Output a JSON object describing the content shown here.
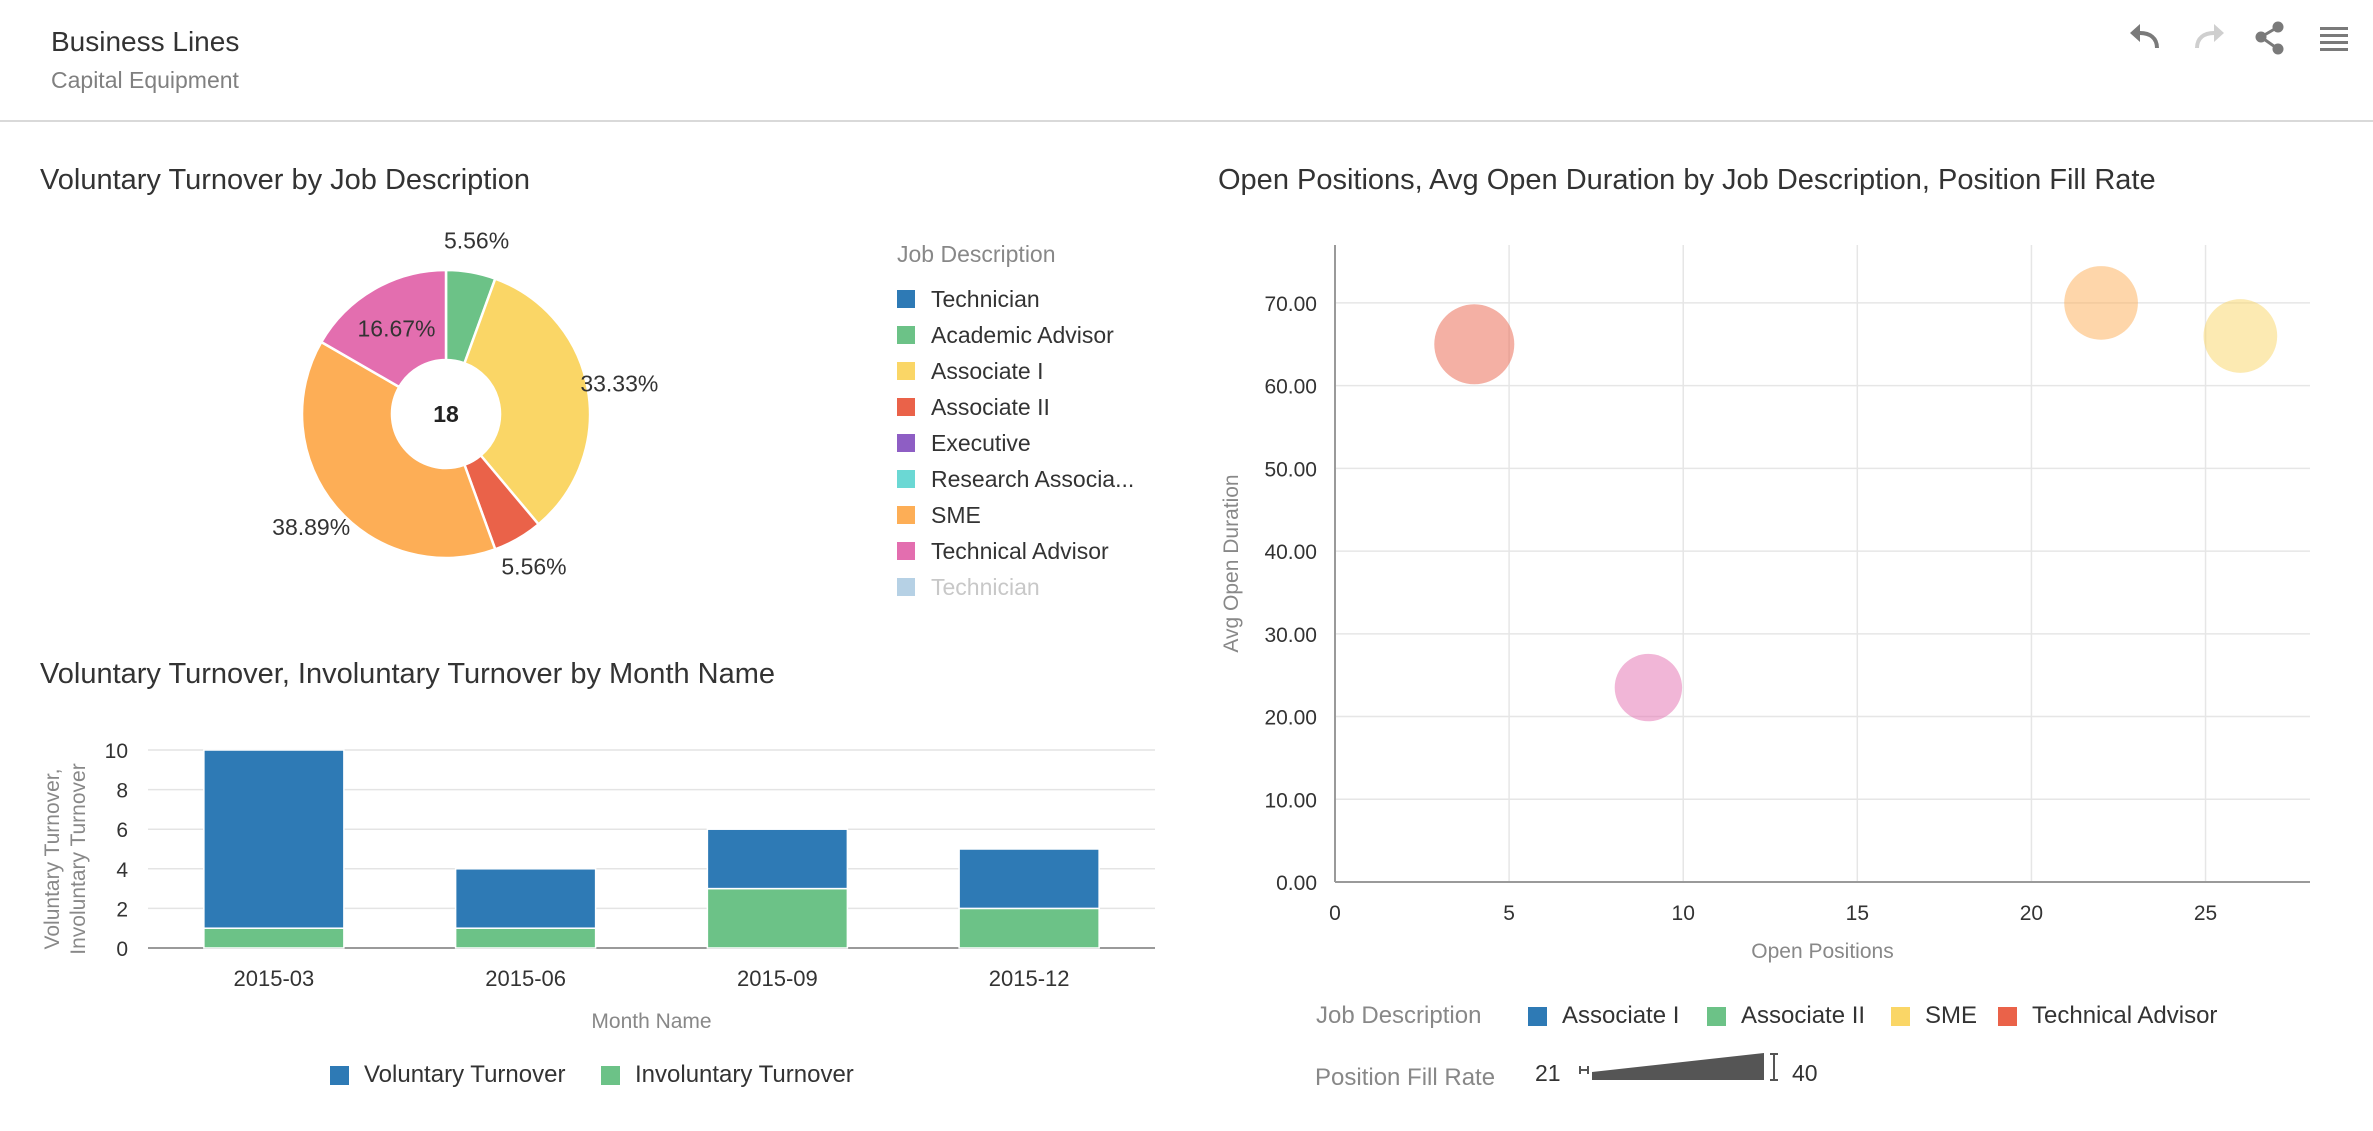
{
  "header": {
    "title": "Business Lines",
    "subtitle": "Capital Equipment"
  },
  "toolbar": {
    "undo_icon": "undo-icon",
    "redo_icon": "redo-icon",
    "share_icon": "share-icon",
    "menu_icon": "menu-icon"
  },
  "colors": {
    "Technician": "#2e7ab5",
    "Academic Advisor": "#6cc287",
    "Associate I": "#fad666",
    "Associate II": "#ea6249",
    "Executive": "#8e5ec4",
    "Research Associate": "#6bd8d4",
    "SME": "#fdae56",
    "Technical Advisor": "#e36eaf"
  },
  "pie": {
    "title": "Voluntary Turnover by Job Description",
    "center_label": "18",
    "legend_title": "Job Description",
    "legend_items": [
      "Technician",
      "Academic Advisor",
      "Associate I",
      "Associate II",
      "Executive",
      "Research Associa...",
      "SME",
      "Technical Advisor",
      "Technician"
    ]
  },
  "bar": {
    "title": "Voluntary Turnover, Involuntary Turnover by Month Name",
    "ylabel_line1": "Voluntary Turnover,",
    "ylabel_line2": "Involuntary Turnover",
    "xlabel": "Month Name",
    "legend": [
      "Voluntary Turnover",
      "Involuntary Turnover"
    ]
  },
  "bubble": {
    "title": "Open Positions, Avg Open Duration by Job Description, Position Fill Rate",
    "xlabel": "Open Positions",
    "ylabel": "Avg Open Duration",
    "legend_title": "Job Description",
    "legend": [
      "Associate I",
      "Associate II",
      "SME",
      "Technical Advisor"
    ],
    "size_legend_title": "Position Fill Rate",
    "size_min": "21",
    "size_max": "40"
  },
  "chart_data": [
    {
      "type": "pie",
      "title": "Voluntary Turnover by Job Description",
      "donut": true,
      "total": 18,
      "slices": [
        {
          "name": "Academic Advisor",
          "value": 1,
          "label": "5.56%"
        },
        {
          "name": "Associate I",
          "value": 6,
          "label": "33.33%"
        },
        {
          "name": "Associate II",
          "value": 1,
          "label": "5.56%"
        },
        {
          "name": "SME",
          "value": 7,
          "label": "38.89%"
        },
        {
          "name": "Technical Advisor",
          "value": 3,
          "label": "16.67%"
        }
      ]
    },
    {
      "type": "bar",
      "stacked": true,
      "title": "Voluntary Turnover, Involuntary Turnover by Month Name",
      "categories": [
        "2015-03",
        "2015-06",
        "2015-09",
        "2015-12"
      ],
      "series": [
        {
          "name": "Voluntary Turnover",
          "values": [
            9,
            3,
            3,
            3
          ],
          "color": "#2e7ab5"
        },
        {
          "name": "Involuntary Turnover",
          "values": [
            1,
            1,
            3,
            2
          ],
          "color": "#6cc287"
        }
      ],
      "ylim": [
        0,
        10
      ],
      "yticks": [
        0,
        2,
        4,
        6,
        8,
        10
      ],
      "xlabel": "Month Name",
      "ylabel": "Voluntary Turnover, Involuntary Turnover",
      "grid": true,
      "legend": "bottom"
    },
    {
      "type": "scatter",
      "bubble": true,
      "title": "Open Positions, Avg Open Duration by Job Description, Position Fill Rate",
      "xlabel": "Open Positions",
      "ylabel": "Avg Open Duration",
      "xlim": [
        0,
        28
      ],
      "ylim": [
        0,
        77
      ],
      "xticks": [
        0,
        5,
        10,
        15,
        20,
        25
      ],
      "yticks": [
        "0.00",
        "10.00",
        "20.00",
        "30.00",
        "40.00",
        "50.00",
        "60.00",
        "70.00"
      ],
      "grid": true,
      "legend": "bottom",
      "points": [
        {
          "name": "Associate I",
          "x": 26,
          "y": 66,
          "size": 35
        },
        {
          "name": "Associate II",
          "x": 4,
          "y": 65,
          "size": 40
        },
        {
          "name": "SME",
          "x": 22,
          "y": 70,
          "size": 35
        },
        {
          "name": "Technical Advisor",
          "x": 9,
          "y": 23.5,
          "size": 30
        }
      ],
      "size_range": [
        21,
        40
      ]
    }
  ]
}
